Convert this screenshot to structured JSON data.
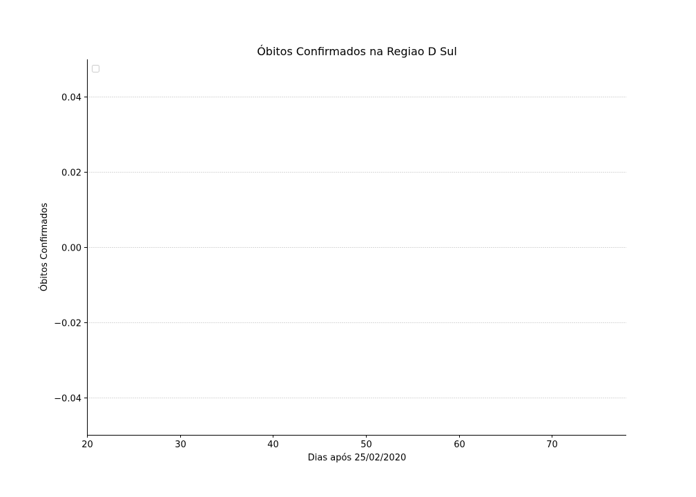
{
  "chart_data": {
    "type": "line",
    "title": "Óbitos Confirmados na Regiao D Sul",
    "xlabel": "Dias após 25/02/2020",
    "ylabel": "Óbitos Confirmados",
    "xlim": [
      20,
      78
    ],
    "ylim": [
      -0.05,
      0.05
    ],
    "x_ticks": [
      20,
      30,
      40,
      50,
      60,
      70
    ],
    "y_ticks": [
      -0.04,
      -0.02,
      0.0,
      0.02,
      0.04
    ],
    "x_tick_labels": [
      "20",
      "30",
      "40",
      "50",
      "60",
      "70"
    ],
    "y_tick_labels": [
      "−0.04",
      "−0.02",
      "0.00",
      "0.02",
      "0.04"
    ],
    "grid": "y-only",
    "legend": "top-left",
    "series": []
  },
  "colors": {
    "axis": "#000000",
    "grid": "#cccccc",
    "legend_border": "#cccccc"
  }
}
